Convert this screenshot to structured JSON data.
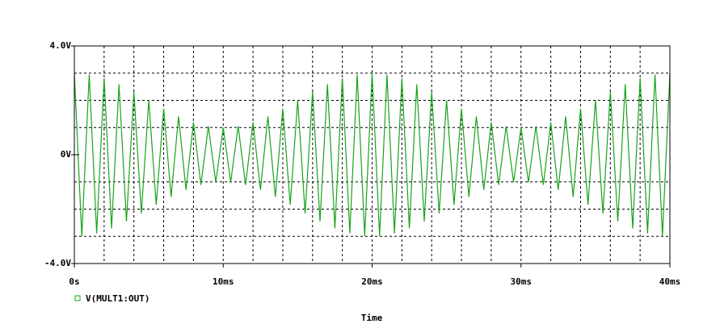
{
  "chart_data": {
    "type": "line",
    "x_label": "Time",
    "x": [
      0,
      0.5,
      1,
      1.5,
      2,
      2.5,
      3,
      3.5,
      4,
      4.5,
      5,
      5.5,
      6,
      6.5,
      7,
      7.5,
      8,
      8.5,
      9,
      9.5,
      10,
      10.5,
      11,
      11.5,
      12,
      12.5,
      13,
      13.5,
      14,
      14.5,
      15,
      15.5,
      16,
      16.5,
      17,
      17.5,
      18,
      18.5,
      19,
      19.5,
      20,
      20.5,
      21,
      21.5,
      22,
      22.5,
      23,
      23.5,
      24,
      24.5,
      25,
      25.5,
      26,
      26.5,
      27,
      27.5,
      28,
      28.5,
      29,
      29.5,
      30,
      30.5,
      31,
      31.5,
      32,
      32.5,
      33,
      33.5,
      34,
      34.5,
      35,
      35.5,
      36,
      36.5,
      37,
      37.5,
      38,
      38.5,
      39,
      39.5,
      40
    ],
    "series": [
      {
        "name": "V(MULT1:OUT)",
        "color": "#19a319",
        "values": [
          3.0,
          -2.99,
          2.95,
          -2.89,
          2.81,
          -2.71,
          2.59,
          -2.45,
          2.31,
          -2.16,
          2.0,
          -1.84,
          1.69,
          -1.55,
          1.41,
          -1.29,
          1.19,
          -1.11,
          1.05,
          -1.01,
          1.0,
          -1.01,
          1.05,
          -1.11,
          1.19,
          -1.29,
          1.41,
          -1.55,
          1.69,
          -1.84,
          2.0,
          -2.16,
          2.31,
          -2.45,
          2.59,
          -2.71,
          2.81,
          -2.89,
          2.95,
          -2.99,
          3.0,
          -2.99,
          2.95,
          -2.89,
          2.81,
          -2.71,
          2.59,
          -2.45,
          2.31,
          -2.16,
          2.0,
          -1.84,
          1.69,
          -1.55,
          1.41,
          -1.29,
          1.19,
          -1.11,
          1.05,
          -1.01,
          1.0,
          -1.01,
          1.05,
          -1.11,
          1.19,
          -1.29,
          1.41,
          -1.55,
          1.69,
          -1.84,
          2.0,
          -2.16,
          2.31,
          -2.45,
          2.59,
          -2.71,
          2.81,
          -2.89,
          2.95,
          -2.99,
          3.0
        ]
      }
    ],
    "xlim": [
      0,
      40
    ],
    "ylim": [
      -4,
      4
    ],
    "xticks": [
      {
        "value": 0,
        "label": "0s"
      },
      {
        "value": 10,
        "label": "10ms"
      },
      {
        "value": 20,
        "label": "20ms"
      },
      {
        "value": 30,
        "label": "30ms"
      },
      {
        "value": 40,
        "label": "40ms"
      }
    ],
    "yticks": [
      {
        "value": -4,
        "label": "-4.0V"
      },
      {
        "value": 0,
        "label": "0V"
      },
      {
        "value": 4,
        "label": "4.0V"
      }
    ],
    "xgrid": [
      2,
      4,
      6,
      8,
      10,
      12,
      14,
      16,
      18,
      20,
      22,
      24,
      26,
      28,
      30,
      32,
      34,
      36,
      38
    ],
    "ygrid": [
      -3,
      -2,
      -1,
      1,
      2,
      3
    ],
    "grid": true
  }
}
